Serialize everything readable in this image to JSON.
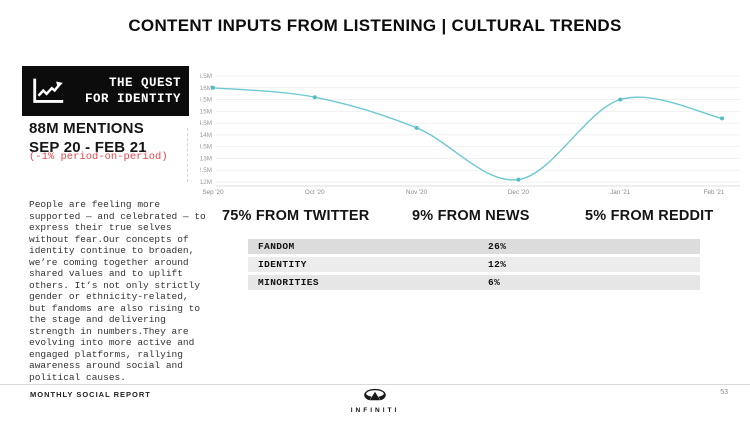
{
  "slide": {
    "title": "CONTENT INPUTS FROM LISTENING | CULTURAL TRENDS"
  },
  "badge": {
    "icon": "trend-line-icon",
    "text": "THE QUEST\nFOR IDENTITY"
  },
  "stats": {
    "mentions": "88M MENTIONS\nSEP 20 - FEB 21",
    "change": "(-1% period-on-period)",
    "change_color": "#e8474d"
  },
  "commentary": "People are feeling more\nsupported — and celebrated — to\nexpress their true selves\nwithout fear.Our concepts of\nidentity continue to broaden,\nwe’re coming together around\nshared values and to uplift\nothers. It’s not only strictly\ngender or ethnicity-related,\nbut fandoms are also rising to\nthe stage and delivering\nstrength in numbers.They are\nevolving into more active and\nengaged platforms, rallying\nawareness around social and\npolitical causes.",
  "chart_data": {
    "type": "line",
    "x": [
      "Sep '20",
      "Oct '20",
      "Nov '20",
      "Dec '20",
      "Jan '21",
      "Feb '21"
    ],
    "series": [
      {
        "name": "Mentions",
        "values": [
          16.0,
          15.6,
          14.3,
          12.1,
          15.5,
          14.7
        ]
      }
    ],
    "unit": "M",
    "ylim": [
      12,
      16.5
    ],
    "ytick_step": 0.5,
    "ytick_labels": [
      "16.5M",
      "16M",
      "15.5M",
      "15M",
      "14.5M",
      "14M",
      "13.5M",
      "13M",
      "12.5M",
      "12M"
    ],
    "grid": true,
    "legend": "none",
    "line_color": "#6fc9d2",
    "marker_color": "#56bdc7",
    "grid_color": "#f1f1f1",
    "axis_color": "#dcdcdc",
    "tick_text_color": "#999999"
  },
  "sources": [
    {
      "label": "75% FROM TWITTER"
    },
    {
      "label": "9% FROM NEWS"
    },
    {
      "label": "5% FROM REDDIT"
    }
  ],
  "topics_table": {
    "row_colors": [
      "#dcdcdc",
      "#ececec",
      "#e6e6e6"
    ],
    "rows": [
      {
        "label": "FANDOM",
        "value": "26%"
      },
      {
        "label": "IDENTITY",
        "value": "12%"
      },
      {
        "label": "MINORITIES",
        "value": "6%"
      }
    ]
  },
  "footer": {
    "report_name": "MONTHLY SOCIAL REPORT",
    "brand": "INFINITI",
    "page": "53"
  }
}
